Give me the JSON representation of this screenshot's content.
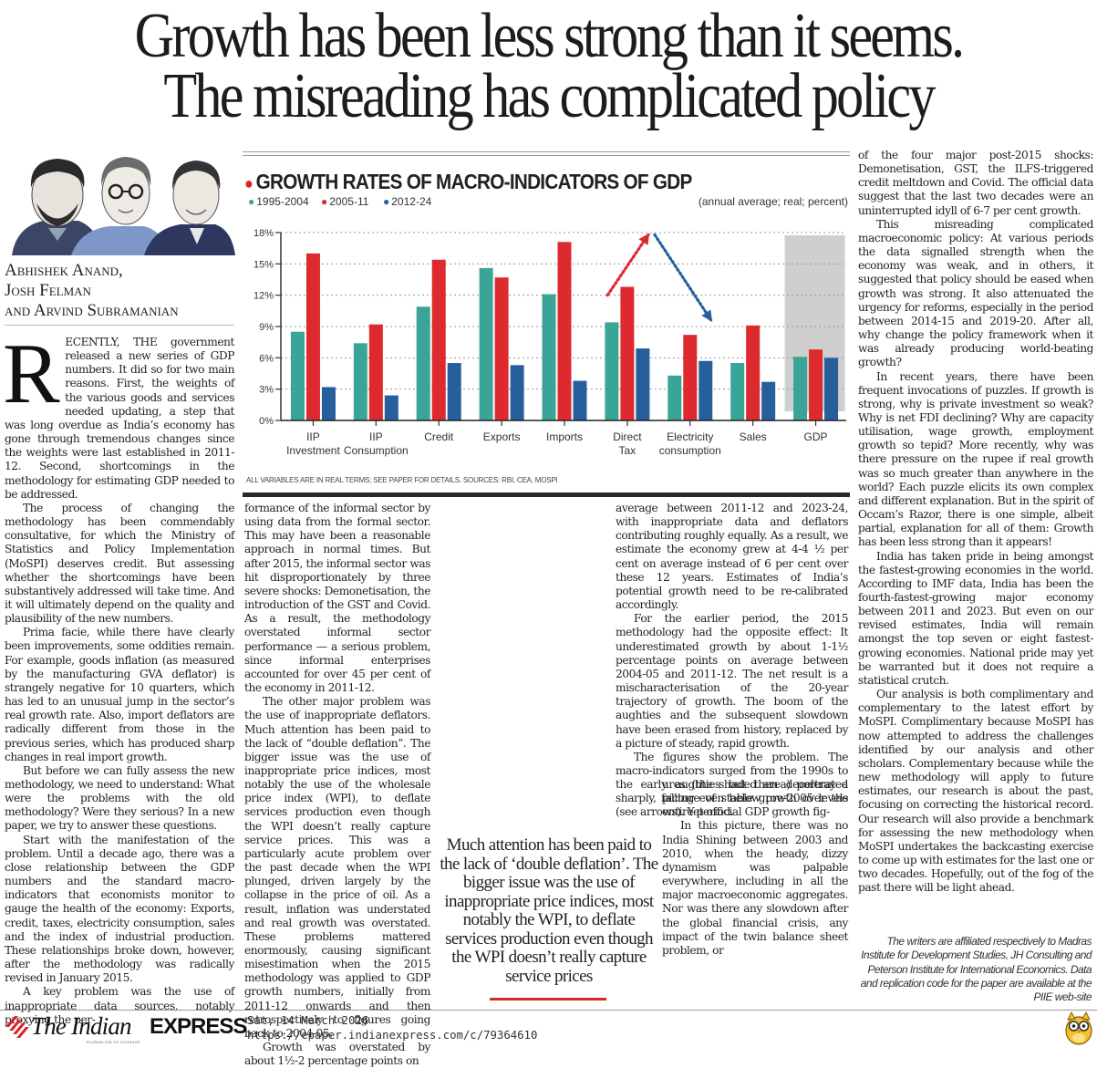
{
  "headline": {
    "line1": "Growth has been less strong than it seems.",
    "line2": "The misreading has complicated policy"
  },
  "byline": {
    "image_icon": "author-caricatures-image",
    "authors": [
      "Abhishek Anand,",
      "Josh Felman",
      "and Arvind Subramanian"
    ]
  },
  "columns": {
    "col1": {
      "dropcap": "R",
      "paragraphs": [
        "ECENTLY, THE government released a new series of GDP numbers. It did so for two main reasons. First, the weights of the various goods and services needed updating, a step that was long overdue as India’s economy has gone through tremendous changes since the weights were last established in 2011-12. Second, shortcomings in the methodology for estimating GDP needed to be addressed.",
        "The process of changing the methodology has been commendably consultative, for which the Ministry of Statistics and Policy Implementation (MoSPI) deserves credit. But assessing whether the shortcomings have been substantively addressed will take time. And it will ultimately depend on the quality and plausibility of the new numbers.",
        "Prima facie, while there have clearly been improvements, some oddities remain. For example, goods inflation (as measured by the manufacturing GVA deflator) is strangely negative for 10 quarters, which has led to an unusual jump in the sector’s real growth rate. Also, import deflators are radically different from those in the previous series, which has produced sharp changes in real import growth.",
        "But before we can fully assess the new methodology, we need to understand: What were the problems with the old methodology? Were they serious? In a new paper, we try to answer these questions.",
        "Start with the manifestation of the problem. Until a decade ago, there was a close relationship between the GDP numbers and the standard macro-indicators that economists monitor to gauge the health of the economy: Exports, credit, taxes, electricity consumption, sales and the index of industrial production. These relationships broke down, however, after the methodology was radically revised in January 2015.",
        "A key problem was the use of inappropriate data sources, notably proxying the per-"
      ]
    },
    "col2": {
      "paragraphs": [
        "formance of the informal sector by using data from the formal sector. This may have been a reasonable approach in normal times. But after 2015, the informal sector was hit disproportionately by three severe shocks: Demonetisation, the introduction of the GST and Covid. As a result, the methodology overstated informal sector performance — a serious problem, since informal enterprises accounted for over 45 per cent of the economy in 2011-12.",
        "The other major problem was the use of inappropriate deflators. Much attention has been paid to the lack of “double deflation”. The bigger issue was the use of inappropriate price indices, most notably the use of the wholesale price index (WPI), to deflate services production even though the WPI doesn’t really capture service prices. This was a particularly acute problem over the past decade when the WPI plunged, driven largely by the collapse in the price of oil. As a result, inflation was understated and real growth was overstated. These problems mattered enormously, causing significant misestimation when the 2015 methodology was applied to GDP growth numbers, initially from 2011-12 onwards and then retrospectively to figures going back to 2004-05.",
        "Growth was overstated by about 1½-2 percentage points on"
      ]
    },
    "col3": {
      "paragraphs": [
        "average between 2011-12 and 2023-24, with inappropriate data and deflators contributing roughly equally. As a result, we estimate the economy grew at 4-4 ½ per cent on average instead of 6 per cent over these 12 years. Estimates of India’s potential growth need to be re-calibrated accordingly.",
        "For the earlier period, the 2015 methodology had the opposite effect: It underestimated growth by about 1-1½ percentage points on average between 2004-05 and 2011-12. The net result is a mischaracterisation of the 20-year trajectory of growth. The boom of the aughties and the subsequent slowdown have been erased from history, replaced by a picture of steady, rapid growth.",
        "The figures show the problem. The macro-indicators surged from the 1990s to the early aughties but then decelerated sharply, falling even below pre-2005 levels (see arrows). Yet official GDP growth fig-"
      ],
      "wrap_paragraphs": [
        "ures (the shaded area) portray a picture of stable growth over the entire period.",
        "In this picture, there was no India Shining between 2003 and 2010, when the heady, dizzy dynamism was palpable everywhere, including in all the major macroeconomic aggregates. Nor was there any slowdown after the global financial crisis, any impact of the twin balance sheet problem, or"
      ]
    },
    "col4": {
      "paragraphs": [
        "of the four major post-2015 shocks: Demonetisation, GST, the ILFS-triggered credit meltdown and Covid. The official data suggest that the last two decades were an uninterrupted idyll of 6-7 per cent growth.",
        "This misreading complicated macroeconomic policy: At various periods the data signalled strength when the economy was weak, and in others, it suggested that policy should be eased when growth was strong. It also attenuated the urgency for reforms, especially in the period between 2014-15 and 2019-20. After all, why change the policy framework when it was already producing world-beating growth?",
        "In recent years, there have been frequent invocations of puzzles. If growth is strong, why is private investment so weak? Why is net FDI declining? Why are capacity utilisation, wage growth, employment growth so tepid? More recently, why was there pressure on the rupee if real growth was so much greater than anywhere in the world? Each puzzle elicits its own complex and different explanation. But in the spirit of Occam’s Razor, there is one simple, albeit partial, explanation for all of them: Growth has been less strong than it appears!",
        "India has taken pride in being amongst the fastest-growing economies in the world. According to IMF data, India has been the fourth-fastest-growing major economy between 2011 and 2023. But even on our revised estimates, India will remain amongst the top seven or eight fastest-growing economies. National pride may yet be warranted but it does not require a statistical crutch.",
        "Our analysis is both complimentary and complementary to the latest effort by MoSPI. Complimentary because MoSPI has now attempted to address the challenges identified by our analysis and other scholars. Complementary because while the new methodology will apply to future estimates, our research is about the past, focusing on correcting the historical record. Our research will also provide a benchmark for assessing the new methodology when MoSPI undertakes the backcasting exercise to come up with estimates for the last one or two decades. Hopefully, out of the fog of the past there will be light ahead."
      ]
    }
  },
  "pull_quote": "Much attention has been paid to the lack of ‘double deflation’. The bigger issue was the use of inappropriate price indices, most notably the WPI, to deflate services production even though the WPI doesn’t really capture service prices",
  "credits": "The writers are affiliated respectively to Madras Institute for Development Studies, JH Consulting and Peterson Institute for International Economics. Data and replication code for the paper are available at the PIIE web-site",
  "footer": {
    "logo_the_indian": "The Indian",
    "logo_express": "EXPRESS",
    "logo_tagline": "JOURNALISM OF COURAGE",
    "date": "Sat, 14 March 2026",
    "url": "https://epaper.indianexpress.com/c/79364610",
    "owl_icon": "owl-mascot-icon"
  },
  "chart_data": {
    "type": "bar",
    "title": "GROWTH RATES OF MACRO-INDICATORS OF GDP",
    "subtitle": "(annual average; real; percent)",
    "xlabel": "",
    "ylabel": "",
    "ylim": [
      0,
      18
    ],
    "yticks": [
      0,
      3,
      6,
      9,
      12,
      15,
      18
    ],
    "ytick_labels": [
      "0%",
      "3%",
      "6%",
      "9%",
      "12%",
      "15%",
      "18%"
    ],
    "grid": true,
    "legend_position": "top-left",
    "categories": [
      [
        "IIP",
        "Investment"
      ],
      [
        "IIP",
        "Consumption"
      ],
      [
        "Credit"
      ],
      [
        "Exports"
      ],
      [
        "Imports"
      ],
      [
        "Direct",
        "Tax"
      ],
      [
        "Electricity",
        "consumption"
      ],
      [
        "Sales"
      ],
      [
        "GDP"
      ]
    ],
    "series": [
      {
        "name": "1995-2004",
        "color": "#3aa597",
        "values": [
          8.5,
          7.4,
          10.9,
          14.6,
          12.1,
          9.4,
          4.3,
          5.5,
          6.1
        ]
      },
      {
        "name": "2005-11",
        "color": "#dd2a2e",
        "values": [
          16.0,
          9.2,
          15.4,
          13.7,
          17.1,
          12.8,
          8.2,
          9.1,
          6.8
        ]
      },
      {
        "name": "2012-24",
        "color": "#275f9c",
        "values": [
          3.2,
          2.4,
          5.5,
          5.3,
          3.8,
          6.9,
          5.7,
          3.7,
          6.0
        ]
      }
    ],
    "shaded_category": "GDP",
    "annotations": [
      {
        "type": "arrow-up",
        "color": "#dd2a2e",
        "from": {
          "category_index": 4.7,
          "y": 12
        },
        "to": {
          "category_index": 5.35,
          "y": 17.8
        }
      },
      {
        "type": "arrow-down",
        "color": "#275f9c",
        "from": {
          "category_index": 5.45,
          "y": 17.8
        },
        "to": {
          "category_index": 6.35,
          "y": 9.6
        }
      }
    ],
    "note": "ALL VARIABLES ARE IN REAL TERMS; SEE PAPER FOR DETAILS. SOURCES: RBI, CEA, MOSPI"
  }
}
